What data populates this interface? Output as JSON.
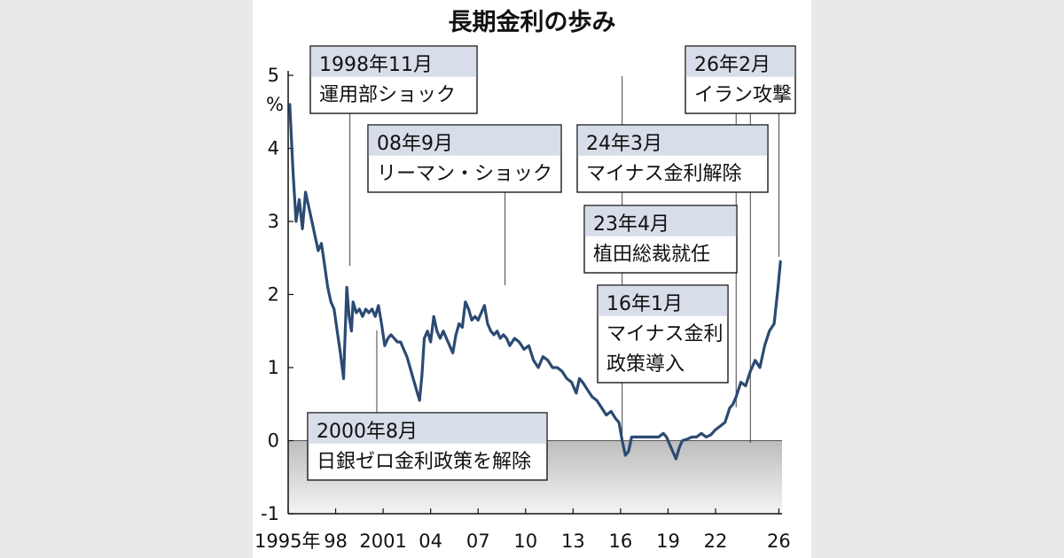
{
  "chart_data": {
    "type": "line",
    "title": "長期金利の歩み",
    "ylabel": "%",
    "ylim": [
      -1,
      5
    ],
    "y_ticks": [
      "5",
      "4",
      "3",
      "2",
      "1",
      "0",
      "-1"
    ],
    "x_ticks": [
      "1995年",
      "98",
      "2001",
      "04",
      "07",
      "10",
      "13",
      "16",
      "19",
      "22",
      "26"
    ],
    "x_tick_years": [
      1995,
      1998,
      2001,
      2004,
      2007,
      2010,
      2013,
      2016,
      2019,
      2022,
      2026
    ],
    "xlim": [
      1995.0,
      2026.2
    ],
    "negative_region_shaded": true,
    "series": [
      {
        "color": "#2b4a73",
        "x": [
          1995.1,
          1995.3,
          1995.5,
          1995.7,
          1995.9,
          1996.1,
          1996.3,
          1996.5,
          1996.7,
          1996.9,
          1997.1,
          1997.3,
          1997.5,
          1997.7,
          1997.9,
          1998.1,
          1998.3,
          1998.5,
          1998.7,
          1998.85,
          1999.0,
          1999.1,
          1999.3,
          1999.5,
          1999.7,
          1999.9,
          2000.1,
          2000.3,
          2000.5,
          2000.7,
          2000.9,
          2001.1,
          2001.3,
          2001.5,
          2001.7,
          2001.9,
          2002.1,
          2002.3,
          2002.5,
          2002.7,
          2002.9,
          2003.1,
          2003.3,
          2003.45,
          2003.6,
          2003.8,
          2004.0,
          2004.2,
          2004.4,
          2004.6,
          2004.8,
          2005.0,
          2005.2,
          2005.4,
          2005.6,
          2005.8,
          2006.0,
          2006.2,
          2006.4,
          2006.6,
          2006.8,
          2007.0,
          2007.2,
          2007.4,
          2007.6,
          2007.8,
          2008.0,
          2008.2,
          2008.4,
          2008.6,
          2008.8,
          2009.0,
          2009.3,
          2009.6,
          2009.9,
          2010.2,
          2010.5,
          2010.8,
          2011.1,
          2011.4,
          2011.7,
          2012.0,
          2012.3,
          2012.6,
          2012.9,
          2013.2,
          2013.4,
          2013.6,
          2013.9,
          2014.2,
          2014.5,
          2014.8,
          2015.1,
          2015.4,
          2015.7,
          2015.9,
          2016.1,
          2016.3,
          2016.5,
          2016.7,
          2016.9,
          2017.2,
          2017.5,
          2017.8,
          2018.1,
          2018.4,
          2018.7,
          2018.9,
          2019.1,
          2019.3,
          2019.5,
          2019.7,
          2019.9,
          2020.2,
          2020.5,
          2020.8,
          2021.1,
          2021.4,
          2021.7,
          2022.0,
          2022.3,
          2022.6,
          2022.9,
          2023.1,
          2023.3,
          2023.6,
          2023.9,
          2024.2,
          2024.5,
          2024.8,
          2025.1,
          2025.4,
          2025.7,
          2025.95,
          2026.1
        ],
        "values": [
          4.6,
          3.7,
          3.0,
          3.3,
          2.9,
          3.4,
          3.2,
          3.0,
          2.8,
          2.6,
          2.7,
          2.4,
          2.1,
          1.9,
          1.8,
          1.5,
          1.2,
          0.85,
          2.1,
          1.7,
          1.5,
          1.9,
          1.75,
          1.8,
          1.7,
          1.8,
          1.75,
          1.8,
          1.7,
          1.85,
          1.6,
          1.3,
          1.4,
          1.45,
          1.4,
          1.35,
          1.35,
          1.25,
          1.15,
          1.0,
          0.85,
          0.7,
          0.55,
          0.9,
          1.4,
          1.5,
          1.35,
          1.7,
          1.5,
          1.4,
          1.5,
          1.4,
          1.3,
          1.2,
          1.45,
          1.6,
          1.55,
          1.9,
          1.8,
          1.65,
          1.7,
          1.65,
          1.75,
          1.85,
          1.6,
          1.5,
          1.45,
          1.5,
          1.4,
          1.45,
          1.4,
          1.3,
          1.4,
          1.35,
          1.25,
          1.3,
          1.1,
          1.0,
          1.15,
          1.1,
          1.0,
          1.0,
          0.95,
          0.85,
          0.8,
          0.65,
          0.85,
          0.8,
          0.7,
          0.6,
          0.55,
          0.45,
          0.35,
          0.4,
          0.3,
          0.25,
          0.0,
          -0.2,
          -0.15,
          0.05,
          0.05,
          0.05,
          0.05,
          0.05,
          0.05,
          0.05,
          0.1,
          0.05,
          -0.05,
          -0.15,
          -0.25,
          -0.1,
          0.0,
          0.02,
          0.05,
          0.05,
          0.1,
          0.05,
          0.08,
          0.15,
          0.2,
          0.25,
          0.45,
          0.5,
          0.6,
          0.8,
          0.75,
          0.95,
          1.1,
          1.0,
          1.3,
          1.5,
          1.6,
          2.1,
          2.45
        ]
      }
    ],
    "annotations": [
      {
        "id": "a1",
        "lines": [
          "1998年11月",
          "運用部ショック"
        ],
        "year": 1998.9
      },
      {
        "id": "a2",
        "lines": [
          "08年9月",
          "リーマン・ショック"
        ],
        "year": 2008.7
      },
      {
        "id": "a3",
        "lines": [
          "26年2月",
          "イラン攻撃"
        ],
        "year": 2026.0
      },
      {
        "id": "a4",
        "lines": [
          "24年3月",
          "マイナス金利解除"
        ],
        "year": 2024.2
      },
      {
        "id": "a5",
        "lines": [
          "23年4月",
          "植田総裁就任"
        ],
        "year": 2023.3
      },
      {
        "id": "a6",
        "lines": [
          "16年1月",
          "マイナス金利",
          "政策導入"
        ],
        "year": 2016.1
      },
      {
        "id": "a7",
        "lines": [
          "2000年8月",
          "日銀ゼロ金利政策を解除"
        ],
        "year": 2000.6
      }
    ]
  }
}
